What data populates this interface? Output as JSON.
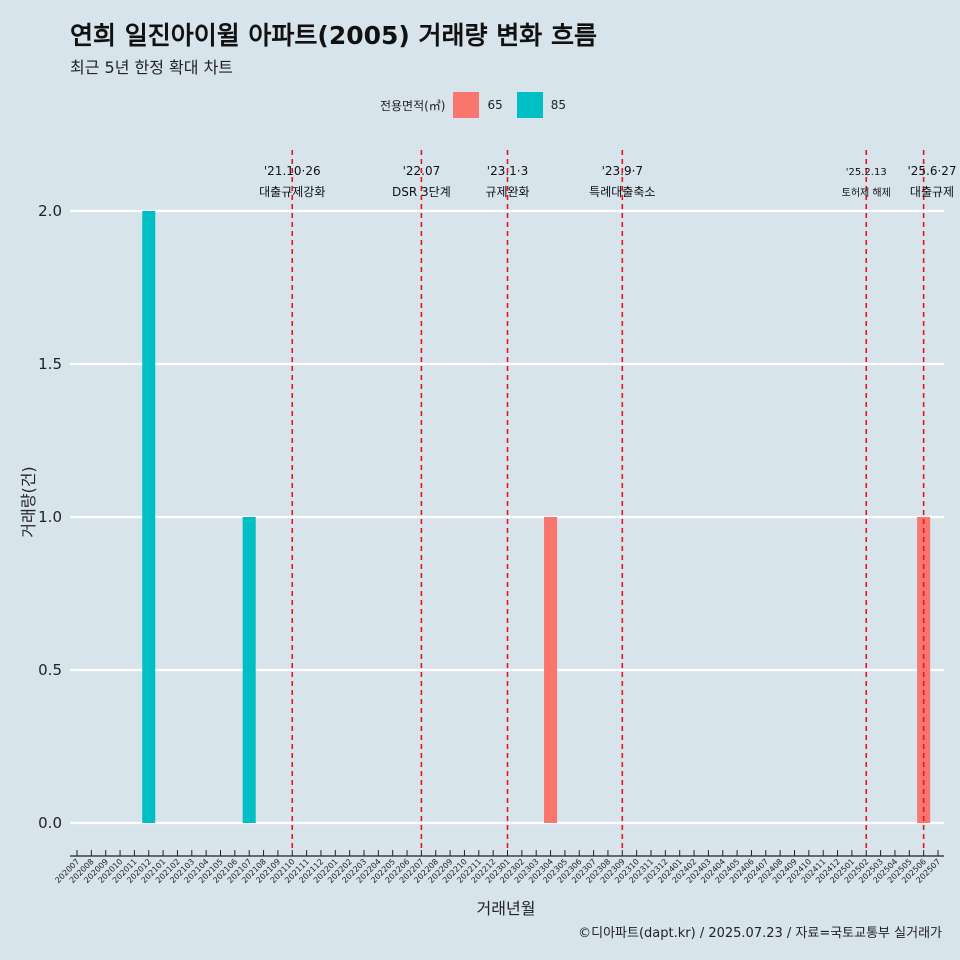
{
  "title": "연희 일진아이윌 아파트(2005) 거래량 변화 흐름",
  "subtitle": "최근 5년 한정 확대 차트",
  "caption": "©디아파트(dapt.kr) / 2025.07.23 / 자료=국토교통부 실거래가",
  "legend": {
    "title": "전용면적(㎡)",
    "items": [
      {
        "label": "65",
        "color": "#f8766d"
      },
      {
        "label": "85",
        "color": "#00bfc4"
      }
    ]
  },
  "chart_data": {
    "type": "bar",
    "xlabel": "거래년월",
    "ylabel": "거래량(건)",
    "ylim": [
      0,
      2
    ],
    "yticks": [
      "0.0",
      "0.5",
      "1.0",
      "1.5",
      "2.0"
    ],
    "grid": true,
    "legend_position": "top",
    "categories": [
      "202007",
      "202008",
      "202009",
      "202010",
      "202011",
      "202012",
      "202101",
      "202102",
      "202103",
      "202104",
      "202105",
      "202106",
      "202107",
      "202108",
      "202109",
      "202110",
      "202111",
      "202112",
      "202201",
      "202202",
      "202203",
      "202204",
      "202205",
      "202206",
      "202207",
      "202208",
      "202209",
      "202210",
      "202211",
      "202212",
      "202301",
      "202302",
      "202303",
      "202304",
      "202305",
      "202306",
      "202307",
      "202308",
      "202309",
      "202310",
      "202311",
      "202312",
      "202401",
      "202402",
      "202403",
      "202404",
      "202405",
      "202406",
      "202407",
      "202408",
      "202409",
      "202410",
      "202411",
      "202412",
      "202501",
      "202502",
      "202503",
      "202504",
      "202505",
      "202506",
      "202507"
    ],
    "bars": [
      {
        "x": "202012",
        "series": "85",
        "value": 2
      },
      {
        "x": "202107",
        "series": "85",
        "value": 1
      },
      {
        "x": "202304",
        "series": "65",
        "value": 1
      },
      {
        "x": "202506",
        "series": "65",
        "value": 1
      }
    ],
    "series_colors": {
      "65": "#f8766d",
      "85": "#00bfc4"
    },
    "annotations": [
      {
        "x": "202110",
        "date": "'21.10·26",
        "label": "대출규제강화"
      },
      {
        "x": "202207",
        "date": "'22.07",
        "label": "DSR 3단계"
      },
      {
        "x": "202301",
        "date": "'23.1·3",
        "label": "규제완화"
      },
      {
        "x": "202309",
        "date": "'23.9·7",
        "label": "특례대출축소"
      },
      {
        "x": "202502",
        "date": "'25.2.13",
        "label": "토허제 해제",
        "small": true
      },
      {
        "x": "202506",
        "date": "'25.6·27",
        "label": "대출규제"
      }
    ],
    "annotation_color": "#e8141b"
  }
}
